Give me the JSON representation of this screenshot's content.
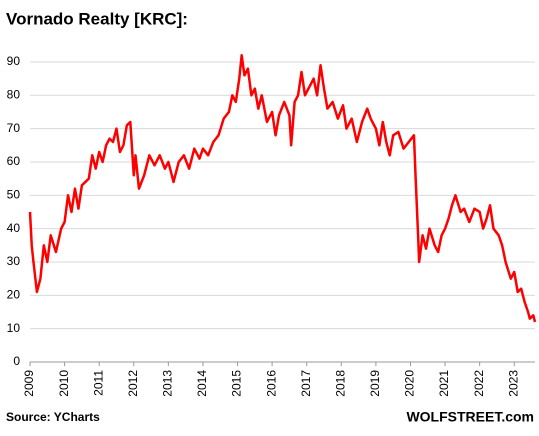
{
  "chart_data": {
    "type": "line",
    "title": "Vornado Realty [KRC]:",
    "source": "Source: YCharts",
    "watermark": "WOLFSTREET.com",
    "color": "#ff0000",
    "grid": true,
    "x": [
      2009.0,
      2009.05,
      2009.1,
      2009.2,
      2009.3,
      2009.4,
      2009.5,
      2009.6,
      2009.75,
      2009.9,
      2010.0,
      2010.1,
      2010.2,
      2010.3,
      2010.4,
      2010.5,
      2010.7,
      2010.8,
      2010.9,
      2011.0,
      2011.1,
      2011.2,
      2011.3,
      2011.4,
      2011.5,
      2011.6,
      2011.7,
      2011.8,
      2011.9,
      2012.0,
      2012.05,
      2012.15,
      2012.3,
      2012.45,
      2012.6,
      2012.75,
      2012.9,
      2013.0,
      2013.15,
      2013.3,
      2013.45,
      2013.6,
      2013.75,
      2013.9,
      2014.0,
      2014.15,
      2014.3,
      2014.45,
      2014.6,
      2014.75,
      2014.85,
      2014.95,
      2015.05,
      2015.12,
      2015.2,
      2015.3,
      2015.4,
      2015.5,
      2015.6,
      2015.7,
      2015.85,
      2016.0,
      2016.1,
      2016.2,
      2016.35,
      2016.5,
      2016.55,
      2016.65,
      2016.75,
      2016.85,
      2016.95,
      2017.05,
      2017.2,
      2017.3,
      2017.4,
      2017.5,
      2017.6,
      2017.75,
      2017.9,
      2018.05,
      2018.15,
      2018.3,
      2018.45,
      2018.6,
      2018.75,
      2018.85,
      2019.0,
      2019.1,
      2019.2,
      2019.3,
      2019.4,
      2019.5,
      2019.65,
      2019.8,
      2019.95,
      2020.1,
      2020.15,
      2020.22,
      2020.25,
      2020.35,
      2020.45,
      2020.55,
      2020.7,
      2020.8,
      2020.9,
      2021.0,
      2021.1,
      2021.2,
      2021.3,
      2021.45,
      2021.55,
      2021.7,
      2021.85,
      2022.0,
      2022.1,
      2022.2,
      2022.3,
      2022.4,
      2022.55,
      2022.65,
      2022.75,
      2022.9,
      2023.0,
      2023.1,
      2023.2,
      2023.3,
      2023.4,
      2023.45,
      2023.55,
      2023.6
    ],
    "values": [
      45,
      35,
      30,
      21,
      25,
      35,
      30,
      38,
      33,
      40,
      42,
      50,
      45,
      52,
      46,
      53,
      55,
      62,
      58,
      63,
      60,
      65,
      67,
      66,
      70,
      63,
      65,
      71,
      72,
      56,
      62,
      52,
      56,
      62,
      59,
      62,
      58,
      60,
      54,
      60,
      62,
      58,
      64,
      61,
      64,
      62,
      66,
      68,
      73,
      75,
      80,
      78,
      85,
      92,
      86,
      88,
      80,
      82,
      76,
      80,
      72,
      75,
      68,
      74,
      78,
      74,
      65,
      78,
      80,
      87,
      80,
      82,
      85,
      80,
      89,
      82,
      76,
      78,
      73,
      77,
      70,
      73,
      66,
      72,
      76,
      73,
      70,
      65,
      72,
      66,
      62,
      68,
      69,
      64,
      66,
      68,
      55,
      38,
      30,
      38,
      34,
      40,
      35,
      33,
      38,
      40,
      43,
      47,
      50,
      45,
      46,
      42,
      46,
      45,
      40,
      43,
      47,
      40,
      38,
      35,
      30,
      25,
      27,
      21,
      22,
      18,
      15,
      13,
      14,
      12
    ],
    "xlim": [
      2009,
      2023.6
    ],
    "ylim": [
      0,
      95
    ],
    "xticks": [
      2009,
      2010,
      2011,
      2012,
      2013,
      2014,
      2015,
      2016,
      2017,
      2018,
      2019,
      2020,
      2021,
      2022,
      2023
    ],
    "yticks": [
      0,
      10,
      20,
      30,
      40,
      50,
      60,
      70,
      80,
      90
    ]
  }
}
